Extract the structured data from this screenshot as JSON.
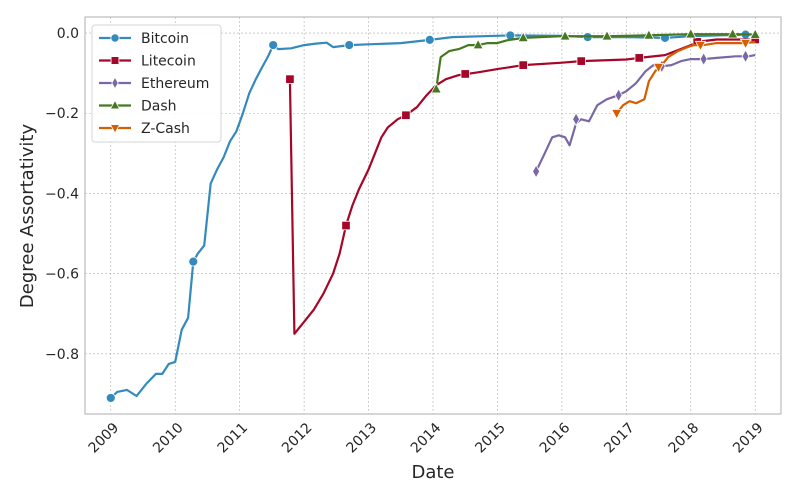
{
  "chart_data": {
    "type": "line",
    "title": "",
    "xlabel": "Date",
    "ylabel": "Degree Assortativity",
    "xlim": [
      2008.6,
      2019.4
    ],
    "ylim": [
      -0.95,
      0.04
    ],
    "grid": true,
    "legend_position": "top-left",
    "x_ticks": [
      2009,
      2010,
      2011,
      2012,
      2013,
      2014,
      2015,
      2016,
      2017,
      2018,
      2019
    ],
    "x_tick_labels": [
      "2009",
      "2010",
      "2011",
      "2012",
      "2013",
      "2014",
      "2015",
      "2016",
      "2017",
      "2018",
      "2019"
    ],
    "y_ticks": [
      0.0,
      -0.2,
      -0.4,
      -0.6,
      -0.8
    ],
    "y_tick_labels": [
      "0.0",
      "−0.2",
      "−0.4",
      "−0.6",
      "−0.8"
    ],
    "series": [
      {
        "name": "Bitcoin",
        "color": "#348ABD",
        "marker": "circle",
        "points": [
          [
            2009.0,
            -0.91
          ],
          [
            2009.1,
            -0.895
          ],
          [
            2009.25,
            -0.89
          ],
          [
            2009.4,
            -0.905
          ],
          [
            2009.55,
            -0.875
          ],
          [
            2009.7,
            -0.85
          ],
          [
            2009.8,
            -0.85
          ],
          [
            2009.9,
            -0.825
          ],
          [
            2010.0,
            -0.82
          ],
          [
            2010.1,
            -0.74
          ],
          [
            2010.2,
            -0.71
          ],
          [
            2010.28,
            -0.57
          ],
          [
            2010.35,
            -0.55
          ],
          [
            2010.45,
            -0.53
          ],
          [
            2010.55,
            -0.375
          ],
          [
            2010.65,
            -0.34
          ],
          [
            2010.75,
            -0.31
          ],
          [
            2010.85,
            -0.27
          ],
          [
            2010.95,
            -0.245
          ],
          [
            2011.05,
            -0.2
          ],
          [
            2011.15,
            -0.15
          ],
          [
            2011.25,
            -0.115
          ],
          [
            2011.35,
            -0.085
          ],
          [
            2011.45,
            -0.055
          ],
          [
            2011.52,
            -0.03
          ],
          [
            2011.6,
            -0.04
          ],
          [
            2011.8,
            -0.038
          ],
          [
            2012.0,
            -0.03
          ],
          [
            2012.2,
            -0.026
          ],
          [
            2012.35,
            -0.024
          ],
          [
            2012.45,
            -0.035
          ],
          [
            2012.7,
            -0.03
          ],
          [
            2013.0,
            -0.028
          ],
          [
            2013.5,
            -0.025
          ],
          [
            2013.95,
            -0.017
          ],
          [
            2014.3,
            -0.01
          ],
          [
            2015.2,
            -0.006
          ],
          [
            2016.0,
            -0.007
          ],
          [
            2016.4,
            -0.01
          ],
          [
            2017.0,
            -0.01
          ],
          [
            2017.6,
            -0.012
          ],
          [
            2018.0,
            -0.008
          ],
          [
            2018.85,
            -0.004
          ]
        ],
        "marker_points": [
          [
            2009.0,
            -0.91
          ],
          [
            2010.28,
            -0.57
          ],
          [
            2011.52,
            -0.03
          ],
          [
            2012.7,
            -0.03
          ],
          [
            2013.95,
            -0.017
          ],
          [
            2015.2,
            -0.006
          ],
          [
            2016.4,
            -0.01
          ],
          [
            2017.6,
            -0.012
          ],
          [
            2018.85,
            -0.004
          ]
        ]
      },
      {
        "name": "Litecoin",
        "color": "#A60628",
        "marker": "square",
        "points": [
          [
            2011.78,
            -0.115
          ],
          [
            2011.85,
            -0.75
          ],
          [
            2012.0,
            -0.72
          ],
          [
            2012.15,
            -0.69
          ],
          [
            2012.3,
            -0.65
          ],
          [
            2012.45,
            -0.6
          ],
          [
            2012.55,
            -0.55
          ],
          [
            2012.65,
            -0.48
          ],
          [
            2012.75,
            -0.43
          ],
          [
            2012.85,
            -0.39
          ],
          [
            2013.0,
            -0.34
          ],
          [
            2013.1,
            -0.3
          ],
          [
            2013.2,
            -0.26
          ],
          [
            2013.3,
            -0.235
          ],
          [
            2013.45,
            -0.215
          ],
          [
            2013.58,
            -0.205
          ],
          [
            2013.75,
            -0.185
          ],
          [
            2013.9,
            -0.155
          ],
          [
            2014.05,
            -0.13
          ],
          [
            2014.2,
            -0.115
          ],
          [
            2014.4,
            -0.105
          ],
          [
            2014.7,
            -0.098
          ],
          [
            2015.0,
            -0.09
          ],
          [
            2015.4,
            -0.08
          ],
          [
            2016.0,
            -0.074
          ],
          [
            2016.3,
            -0.07
          ],
          [
            2017.0,
            -0.066
          ],
          [
            2017.2,
            -0.062
          ],
          [
            2017.6,
            -0.055
          ],
          [
            2018.0,
            -0.03
          ],
          [
            2018.1,
            -0.022
          ],
          [
            2018.4,
            -0.016
          ],
          [
            2019.0,
            -0.016
          ]
        ],
        "marker_points": [
          [
            2011.78,
            -0.115
          ],
          [
            2012.65,
            -0.48
          ],
          [
            2013.58,
            -0.205
          ],
          [
            2014.5,
            -0.102
          ],
          [
            2015.4,
            -0.08
          ],
          [
            2016.3,
            -0.07
          ],
          [
            2017.2,
            -0.062
          ],
          [
            2018.1,
            -0.022
          ],
          [
            2019.0,
            -0.016
          ]
        ]
      },
      {
        "name": "Ethereum",
        "color": "#7A68A6",
        "marker": "diamond",
        "points": [
          [
            2015.6,
            -0.345
          ],
          [
            2015.72,
            -0.305
          ],
          [
            2015.85,
            -0.26
          ],
          [
            2015.95,
            -0.255
          ],
          [
            2016.05,
            -0.26
          ],
          [
            2016.12,
            -0.28
          ],
          [
            2016.22,
            -0.225
          ],
          [
            2016.3,
            -0.215
          ],
          [
            2016.42,
            -0.22
          ],
          [
            2016.55,
            -0.18
          ],
          [
            2016.7,
            -0.165
          ],
          [
            2016.88,
            -0.155
          ],
          [
            2017.0,
            -0.145
          ],
          [
            2017.15,
            -0.125
          ],
          [
            2017.3,
            -0.095
          ],
          [
            2017.42,
            -0.08
          ],
          [
            2017.55,
            -0.083
          ],
          [
            2017.7,
            -0.08
          ],
          [
            2017.85,
            -0.07
          ],
          [
            2018.0,
            -0.065
          ],
          [
            2018.2,
            -0.065
          ],
          [
            2018.4,
            -0.062
          ],
          [
            2018.7,
            -0.058
          ],
          [
            2018.9,
            -0.058
          ],
          [
            2019.0,
            -0.055
          ]
        ],
        "marker_points": [
          [
            2015.6,
            -0.345
          ],
          [
            2016.22,
            -0.215
          ],
          [
            2016.88,
            -0.155
          ],
          [
            2017.55,
            -0.083
          ],
          [
            2018.2,
            -0.065
          ],
          [
            2018.85,
            -0.058
          ]
        ]
      },
      {
        "name": "Dash",
        "color": "#467821",
        "marker": "triangle-up",
        "points": [
          [
            2014.05,
            -0.14
          ],
          [
            2014.12,
            -0.06
          ],
          [
            2014.25,
            -0.045
          ],
          [
            2014.4,
            -0.04
          ],
          [
            2014.55,
            -0.03
          ],
          [
            2014.7,
            -0.03
          ],
          [
            2014.85,
            -0.025
          ],
          [
            2015.0,
            -0.025
          ],
          [
            2015.15,
            -0.018
          ],
          [
            2015.4,
            -0.012
          ],
          [
            2016.0,
            -0.008
          ],
          [
            2016.7,
            -0.008
          ],
          [
            2017.3,
            -0.006
          ],
          [
            2018.0,
            -0.003
          ],
          [
            2018.7,
            -0.003
          ],
          [
            2019.0,
            -0.004
          ]
        ],
        "marker_points": [
          [
            2014.05,
            -0.14
          ],
          [
            2014.7,
            -0.03
          ],
          [
            2015.4,
            -0.012
          ],
          [
            2016.05,
            -0.008
          ],
          [
            2016.7,
            -0.008
          ],
          [
            2017.35,
            -0.006
          ],
          [
            2018.0,
            -0.003
          ],
          [
            2018.65,
            -0.003
          ],
          [
            2019.0,
            -0.004
          ]
        ]
      },
      {
        "name": "Z-Cash",
        "color": "#D55E00",
        "marker": "triangle-down",
        "points": [
          [
            2016.85,
            -0.2
          ],
          [
            2016.95,
            -0.18
          ],
          [
            2017.05,
            -0.17
          ],
          [
            2017.15,
            -0.175
          ],
          [
            2017.28,
            -0.165
          ],
          [
            2017.35,
            -0.12
          ],
          [
            2017.45,
            -0.095
          ],
          [
            2017.55,
            -0.08
          ],
          [
            2017.65,
            -0.06
          ],
          [
            2017.8,
            -0.045
          ],
          [
            2017.95,
            -0.035
          ],
          [
            2018.05,
            -0.03
          ],
          [
            2018.2,
            -0.03
          ],
          [
            2018.4,
            -0.025
          ],
          [
            2018.7,
            -0.025
          ],
          [
            2018.85,
            -0.025
          ],
          [
            2019.0,
            -0.022
          ]
        ],
        "marker_points": [
          [
            2016.85,
            -0.2
          ],
          [
            2017.5,
            -0.085
          ],
          [
            2018.15,
            -0.03
          ],
          [
            2018.85,
            -0.025
          ]
        ]
      }
    ]
  }
}
